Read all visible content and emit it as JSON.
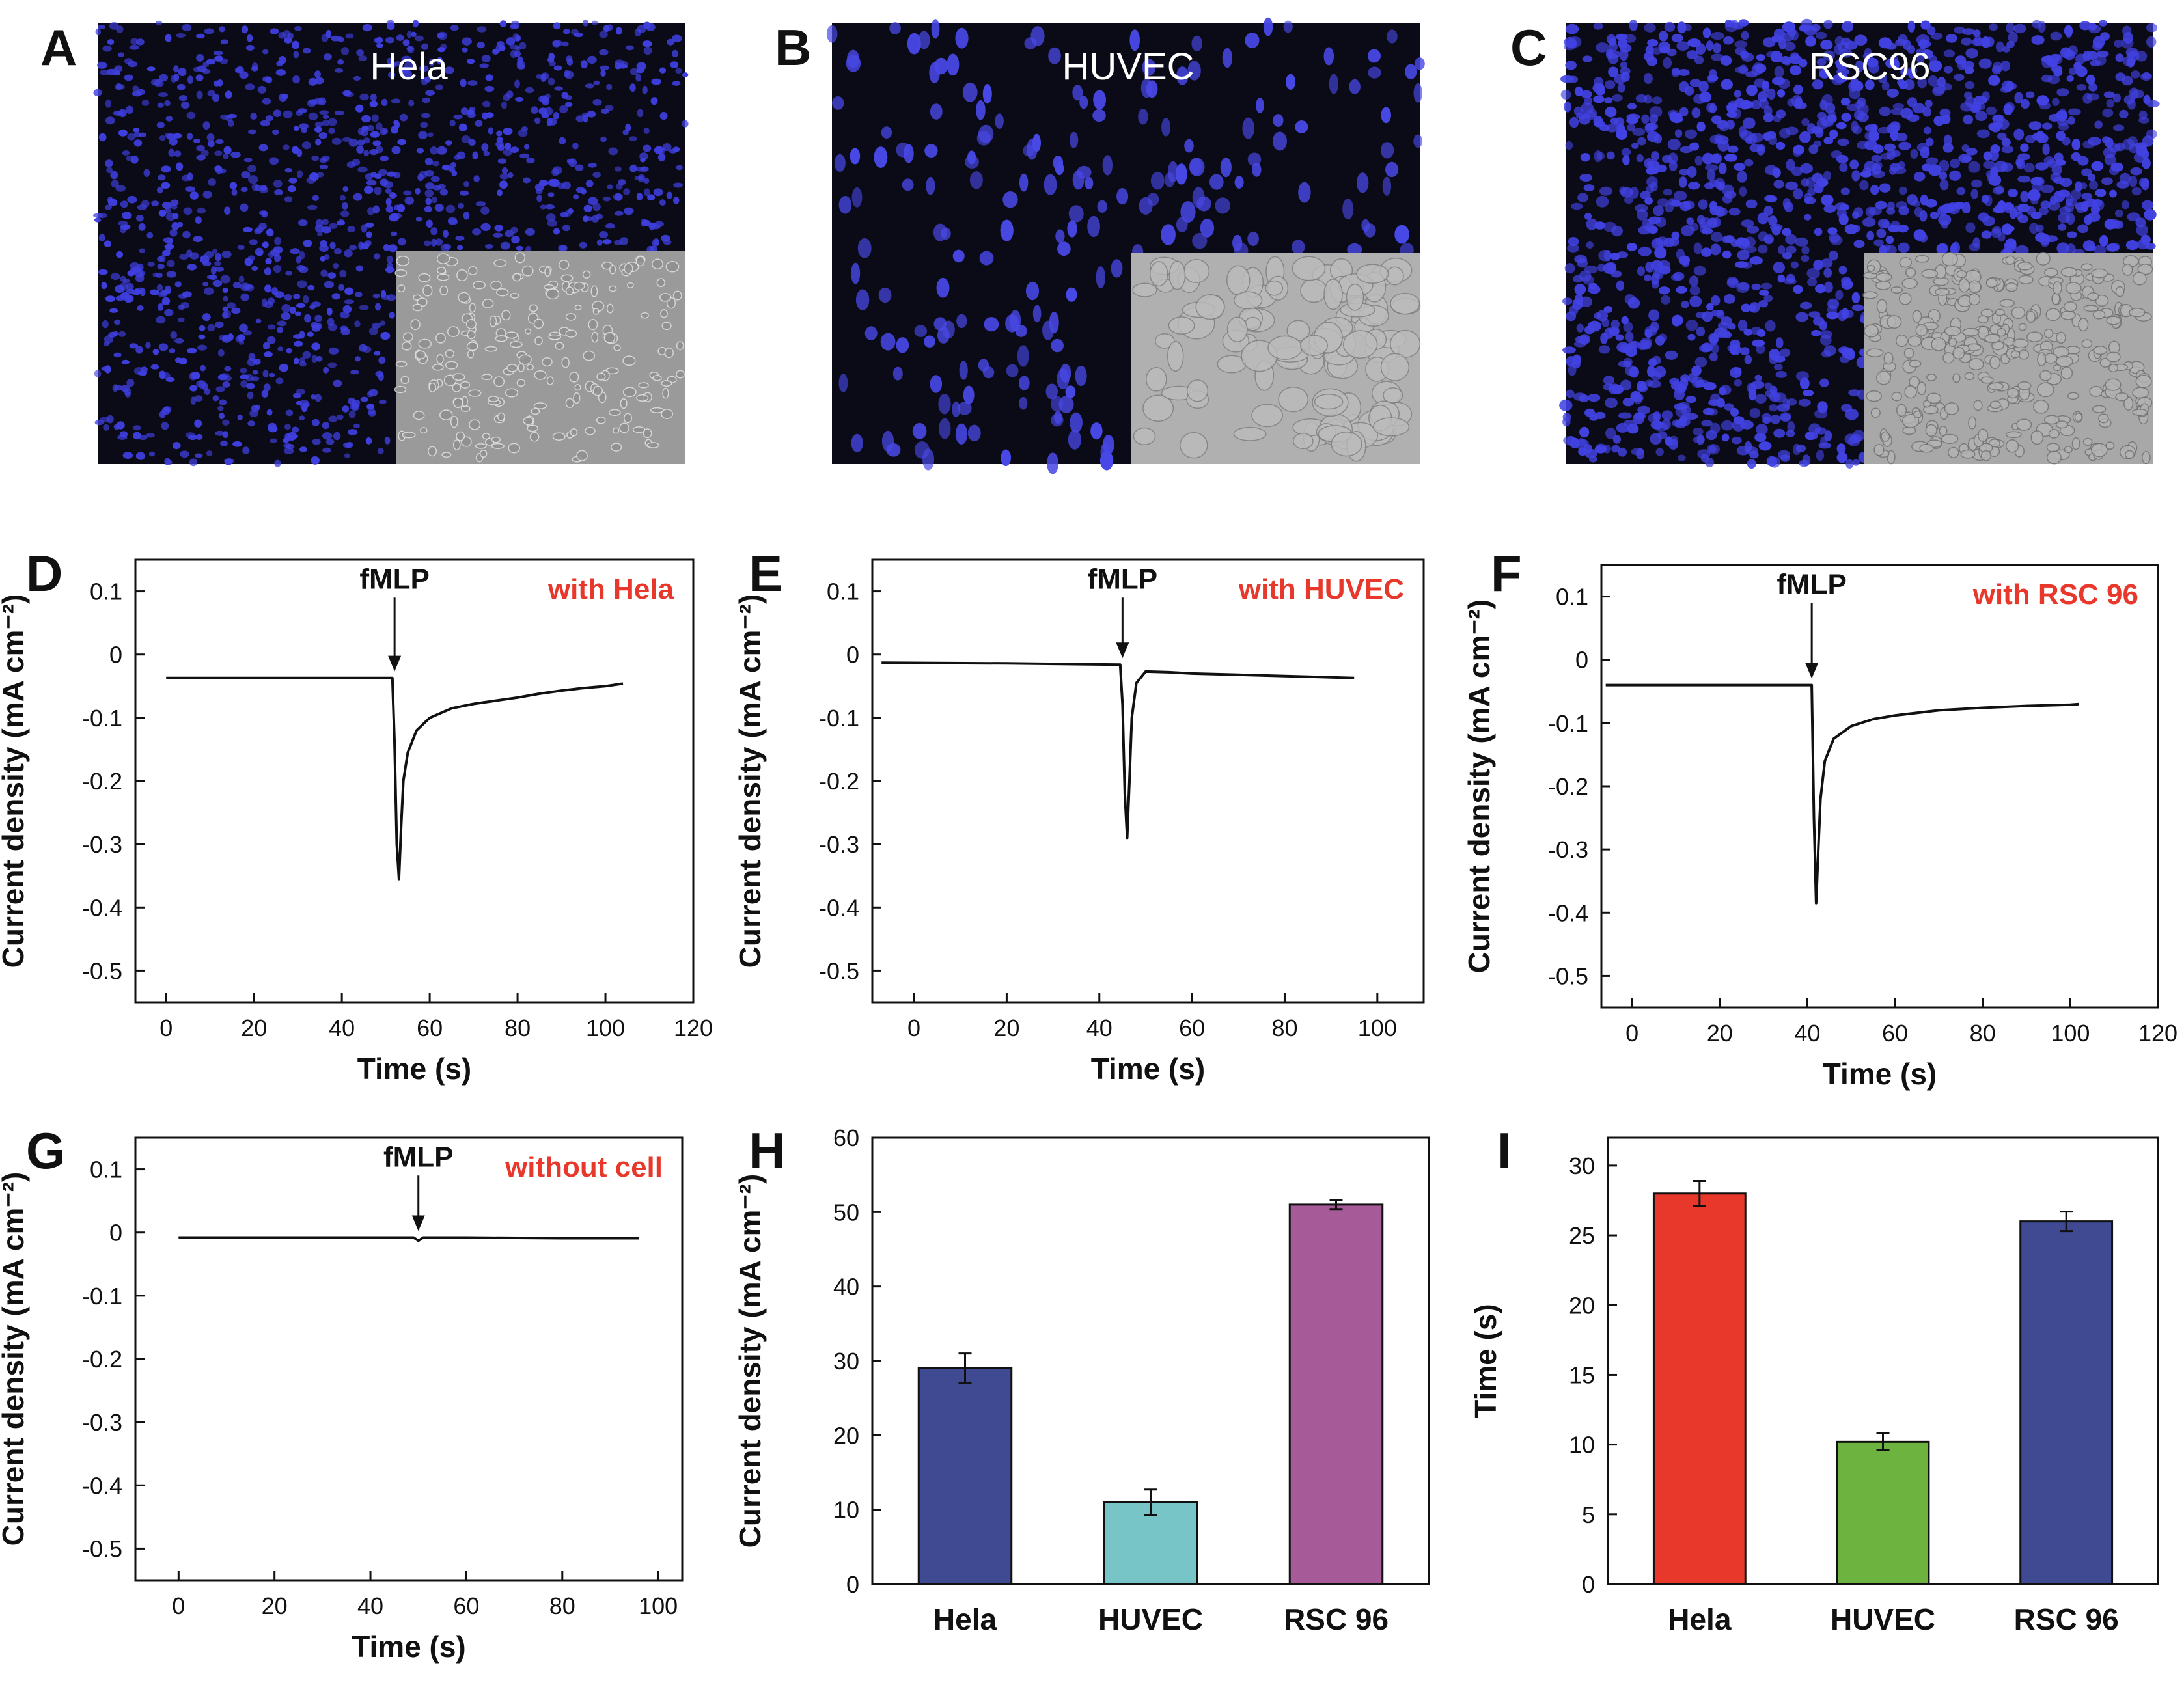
{
  "figure": {
    "colors": {
      "nuclei_bg": "#0b0b18",
      "nuclei": "#3f3fe0",
      "brightfield": "#a9a9a9",
      "annotation": "#e8382c"
    },
    "micrographs": [
      {
        "panel": "A",
        "cell_line": "Hela"
      },
      {
        "panel": "B",
        "cell_line": "HUVEC"
      },
      {
        "panel": "C",
        "cell_line": "RSC96"
      }
    ]
  },
  "chart_data": [
    {
      "panel": "D",
      "type": "line",
      "xlabel": "Time (s)",
      "ylabel": "Current density (mA cm⁻²)",
      "xlim": [
        -7,
        120
      ],
      "ylim": [
        -0.55,
        0.15
      ],
      "xticks": [
        0,
        20,
        40,
        60,
        80,
        100,
        120
      ],
      "yticks": [
        0.1,
        0.0,
        -0.1,
        -0.2,
        -0.3,
        -0.4,
        -0.5
      ],
      "arrow_label": "fMLP",
      "arrow_x": 52,
      "legend": "with Hela",
      "series": [
        {
          "name": "with Hela",
          "x": [
            0,
            51.5,
            52,
            52.5,
            53,
            53.5,
            54,
            55,
            57,
            60,
            65,
            70,
            75,
            80,
            85,
            90,
            95,
            100,
            104
          ],
          "y": [
            -0.037,
            -0.037,
            -0.14,
            -0.3,
            -0.355,
            -0.27,
            -0.2,
            -0.155,
            -0.12,
            -0.1,
            -0.085,
            -0.078,
            -0.073,
            -0.068,
            -0.062,
            -0.057,
            -0.053,
            -0.05,
            -0.046
          ]
        }
      ]
    },
    {
      "panel": "E",
      "type": "line",
      "xlabel": "Time (s)",
      "ylabel": "Current density (mA cm⁻²)",
      "xlim": [
        -9,
        110
      ],
      "ylim": [
        -0.55,
        0.15
      ],
      "xticks": [
        0,
        20,
        40,
        60,
        80,
        100
      ],
      "yticks": [
        0.1,
        0.0,
        -0.1,
        -0.2,
        -0.3,
        -0.4,
        -0.5
      ],
      "arrow_label": "fMLP",
      "arrow_x": 45,
      "legend": "with HUVEC",
      "series": [
        {
          "name": "with HUVEC",
          "x": [
            -7,
            20,
            44.5,
            45,
            45.5,
            46,
            46.5,
            47,
            48,
            50,
            55,
            60,
            70,
            80,
            90,
            95
          ],
          "y": [
            -0.013,
            -0.014,
            -0.016,
            -0.08,
            -0.22,
            -0.29,
            -0.2,
            -0.1,
            -0.045,
            -0.027,
            -0.028,
            -0.03,
            -0.032,
            -0.034,
            -0.036,
            -0.037
          ]
        }
      ]
    },
    {
      "panel": "F",
      "type": "line",
      "xlabel": "Time (s)",
      "ylabel": "Current density (mA cm⁻²)",
      "xlim": [
        -7,
        120
      ],
      "ylim": [
        -0.55,
        0.15
      ],
      "xticks": [
        0,
        20,
        40,
        60,
        80,
        100,
        120
      ],
      "yticks": [
        0.1,
        0.0,
        -0.1,
        -0.2,
        -0.3,
        -0.4,
        -0.5
      ],
      "arrow_label": "fMLP",
      "arrow_x": 41,
      "legend": "with RSC 96",
      "series": [
        {
          "name": "with RSC 96",
          "x": [
            -6,
            20,
            41,
            41.5,
            42,
            42.5,
            43,
            44,
            46,
            50,
            55,
            60,
            70,
            80,
            90,
            100,
            102
          ],
          "y": [
            -0.04,
            -0.04,
            -0.04,
            -0.25,
            -0.385,
            -0.3,
            -0.22,
            -0.16,
            -0.125,
            -0.105,
            -0.094,
            -0.088,
            -0.08,
            -0.076,
            -0.073,
            -0.071,
            -0.07
          ]
        }
      ]
    },
    {
      "panel": "G",
      "type": "line",
      "xlabel": "Time (s)",
      "ylabel": "Current density (mA cm⁻²)",
      "xlim": [
        -9,
        105
      ],
      "ylim": [
        -0.55,
        0.15
      ],
      "xticks": [
        0,
        20,
        40,
        60,
        80,
        100
      ],
      "yticks": [
        0.1,
        0.0,
        -0.1,
        -0.2,
        -0.3,
        -0.4,
        -0.5
      ],
      "arrow_label": "fMLP",
      "arrow_x": 50,
      "legend": "without cell",
      "series": [
        {
          "name": "without cell",
          "x": [
            0,
            20,
            40,
            49,
            50,
            51,
            60,
            80,
            96
          ],
          "y": [
            -0.008,
            -0.008,
            -0.008,
            -0.008,
            -0.013,
            -0.008,
            -0.008,
            -0.009,
            -0.009
          ]
        }
      ]
    },
    {
      "panel": "H",
      "type": "bar",
      "categories": [
        "Hela",
        "HUVEC",
        "RSC 96"
      ],
      "values": [
        29,
        11,
        51
      ],
      "errors": [
        2,
        1.7,
        0.6
      ],
      "colors": [
        "#3f4a92",
        "#77c5c6",
        "#a75a98"
      ],
      "xlabel": "",
      "ylabel": "Current density (mA cm⁻²)",
      "ylim": [
        0,
        60
      ],
      "yticks": [
        0,
        10,
        20,
        30,
        40,
        50,
        60
      ]
    },
    {
      "panel": "I",
      "type": "bar",
      "categories": [
        "Hela",
        "HUVEC",
        "RSC 96"
      ],
      "values": [
        28,
        10.2,
        26
      ],
      "errors": [
        0.9,
        0.6,
        0.7
      ],
      "colors": [
        "#e8382c",
        "#6db33f",
        "#3f4a92"
      ],
      "xlabel": "",
      "ylabel": "Time (s)",
      "ylim": [
        0,
        32
      ],
      "yticks": [
        0,
        5,
        10,
        15,
        20,
        25,
        30
      ]
    }
  ]
}
